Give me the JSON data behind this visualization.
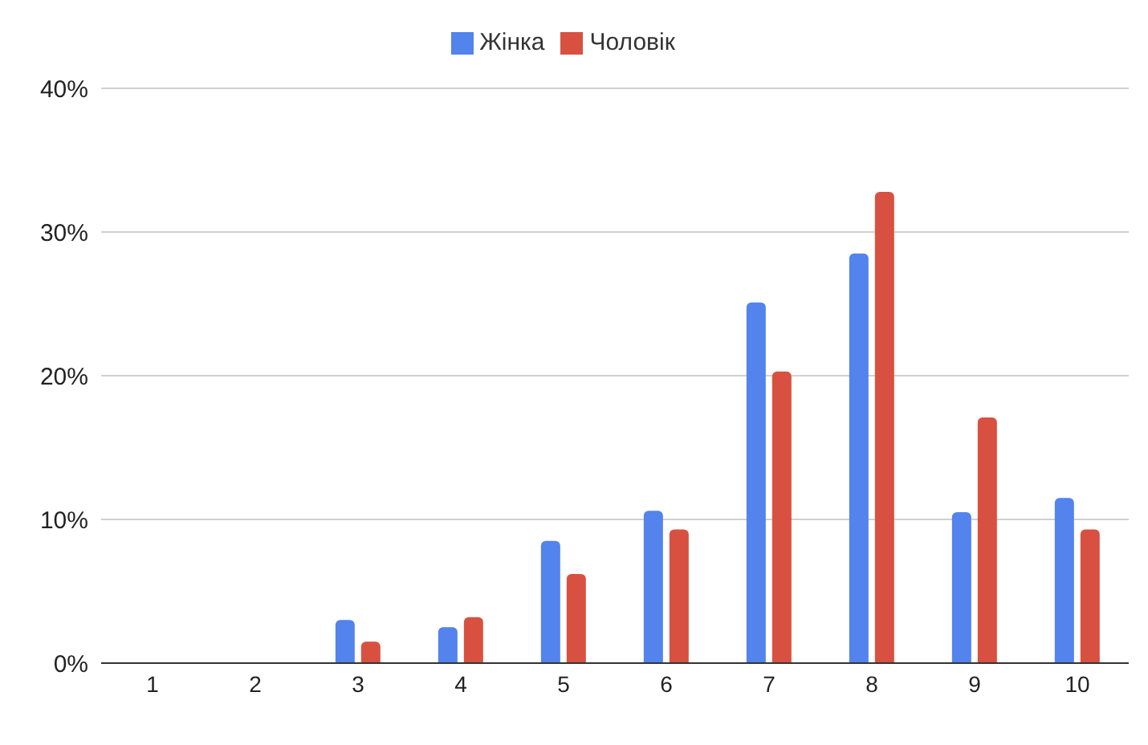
{
  "chart_data": {
    "type": "bar",
    "categories": [
      "1",
      "2",
      "3",
      "4",
      "5",
      "6",
      "7",
      "8",
      "9",
      "10"
    ],
    "series": [
      {
        "name": "Жінка",
        "color": "#5383ec",
        "values": [
          0,
          0,
          3.0,
          2.5,
          8.5,
          10.6,
          25.1,
          28.5,
          10.5,
          11.5
        ]
      },
      {
        "name": "Чоловік",
        "color": "#d85140",
        "values": [
          0,
          0,
          1.5,
          3.2,
          6.2,
          9.3,
          20.3,
          32.8,
          17.1,
          9.3
        ]
      }
    ],
    "ylim": [
      0,
      40
    ],
    "yticks": [
      {
        "value": 0,
        "label": "0%"
      },
      {
        "value": 10,
        "label": "10%"
      },
      {
        "value": 20,
        "label": "20%"
      },
      {
        "value": 30,
        "label": "30%"
      },
      {
        "value": 40,
        "label": "40%"
      }
    ],
    "grid": "y",
    "legend": "top"
  }
}
